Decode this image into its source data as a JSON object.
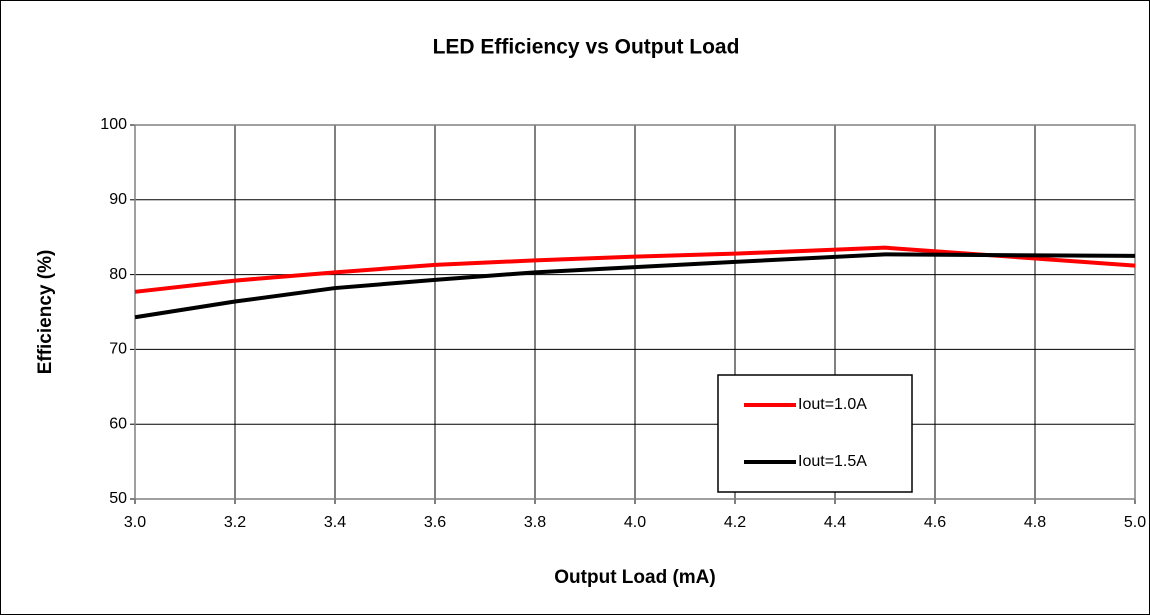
{
  "chart_data": {
    "type": "line",
    "title": "LED Efficiency vs Output Load",
    "xlabel": "Output Load (mA)",
    "ylabel": "Efficiency (%)",
    "x": [
      3.0,
      3.2,
      3.4,
      3.6,
      3.8,
      4.0,
      4.2,
      4.5,
      5.0
    ],
    "series": [
      {
        "name": "Iout=1.0A",
        "color": "#ff0000",
        "values": [
          77.7,
          79.2,
          80.3,
          81.3,
          81.9,
          82.4,
          82.8,
          83.6,
          81.2
        ]
      },
      {
        "name": "Iout=1.5A",
        "color": "#000000",
        "values": [
          74.3,
          76.4,
          78.2,
          79.3,
          80.3,
          81.0,
          81.7,
          82.7,
          82.5
        ]
      }
    ],
    "xlim": [
      3,
      5
    ],
    "ylim": [
      50,
      100
    ],
    "xticks": [
      {
        "value": 3,
        "label": "3.0"
      },
      3.2,
      3.4,
      3.6,
      3.8,
      {
        "value": 4,
        "label": "4.0"
      },
      4.2,
      4.4,
      4.6,
      4.8,
      {
        "value": 5,
        "label": "5.0"
      }
    ],
    "yticks": [
      50,
      60,
      70,
      80,
      90,
      100
    ],
    "grid": true,
    "legend": "lower right"
  }
}
